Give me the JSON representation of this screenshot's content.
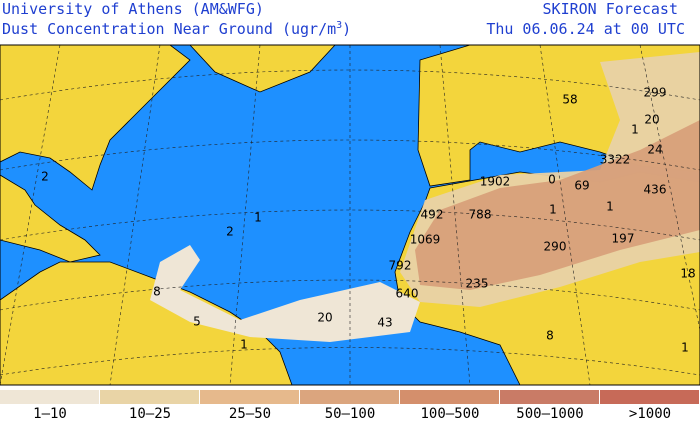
{
  "header": {
    "institution": "University of Athens (AM&WFG)",
    "product": "Dust Concentration Near Ground (ugr/m",
    "unit_exponent": "3",
    "product_end": ")",
    "model": "SKIRON Forecast",
    "valid_time": "Thu 06.06.24 at 00 UTC"
  },
  "legend": [
    {
      "label": "1–10",
      "color": "#efe6d6"
    },
    {
      "label": "10–25",
      "color": "#e9d4a6"
    },
    {
      "label": "25–50",
      "color": "#e6b98c"
    },
    {
      "label": "50–100",
      "color": "#dba57e"
    },
    {
      "label": "100–500",
      "color": "#d48f6c"
    },
    {
      "label": "500–1000",
      "color": "#c97b66"
    },
    {
      "label": ">1000",
      "color": "#c76a58"
    }
  ],
  "map_labels": [
    299,
    20,
    24,
    436,
    58,
    1,
    3322,
    1902,
    0,
    69,
    1,
    1,
    492,
    788,
    1069,
    290,
    197,
    792,
    640,
    235,
    43,
    20,
    5,
    8,
    1,
    2,
    1,
    2,
    18,
    1,
    8
  ]
}
